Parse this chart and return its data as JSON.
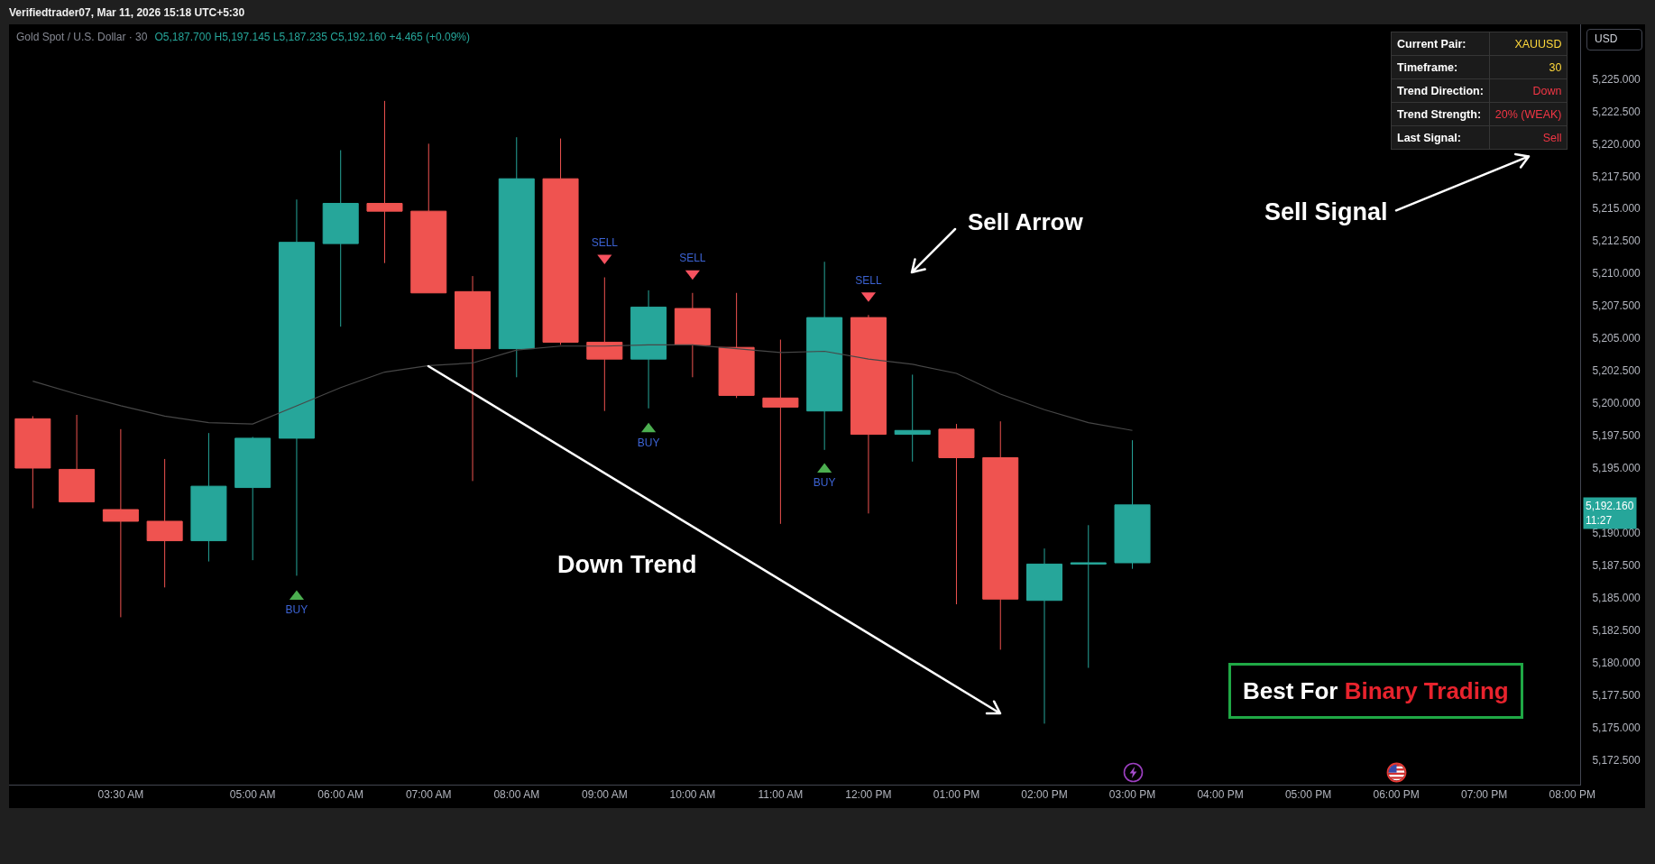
{
  "chart_data": [
    {
      "type": "candlestick",
      "title": "Gold Spot / U.S. Dollar · 30",
      "subtitle": "O5,187.700 H5,197.145 L5,187.235 C5,192.160 +4.465 (+0.09%)",
      "ylabel": "USD",
      "x": [
        2.5,
        3,
        3.5,
        4,
        4.5,
        5,
        5.5,
        6,
        6.5,
        7,
        7.5,
        8,
        8.5,
        9,
        9.5,
        10,
        10.5,
        11,
        11.5,
        12,
        12.5,
        13,
        13.5,
        14,
        14.5,
        15
      ],
      "ohlc": [
        [
          5198.8,
          5199.0,
          5191.9,
          5195.0
        ],
        [
          5194.9,
          5199.1,
          5192.4,
          5192.4
        ],
        [
          5191.8,
          5198.0,
          5183.5,
          5190.9
        ],
        [
          5190.9,
          5195.7,
          5185.8,
          5189.4
        ],
        [
          5189.4,
          5197.7,
          5187.8,
          5193.6
        ],
        [
          5193.5,
          5197.4,
          5187.9,
          5197.3
        ],
        [
          5197.3,
          5215.7,
          5186.7,
          5212.4
        ],
        [
          5212.3,
          5219.5,
          5205.9,
          5215.4
        ],
        [
          5215.4,
          5223.3,
          5210.8,
          5214.8
        ],
        [
          5214.8,
          5220.0,
          5208.5,
          5208.5
        ],
        [
          5208.6,
          5209.8,
          5194.0,
          5204.2
        ],
        [
          5204.2,
          5220.5,
          5202.0,
          5217.3
        ],
        [
          5217.3,
          5220.4,
          5204.5,
          5204.7
        ],
        [
          5204.7,
          5209.7,
          5199.4,
          5203.4
        ],
        [
          5203.4,
          5208.7,
          5199.6,
          5207.4
        ],
        [
          5207.3,
          5208.5,
          5202.0,
          5204.5
        ],
        [
          5204.3,
          5208.5,
          5200.4,
          5200.6
        ],
        [
          5200.4,
          5204.9,
          5190.7,
          5199.7
        ],
        [
          5199.4,
          5210.9,
          5196.4,
          5206.6
        ],
        [
          5206.6,
          5206.8,
          5191.5,
          5197.6
        ],
        [
          5197.6,
          5202.2,
          5195.5,
          5197.9
        ],
        [
          5198.0,
          5198.4,
          5184.5,
          5195.8
        ],
        [
          5195.8,
          5198.6,
          5181.0,
          5184.9
        ],
        [
          5184.8,
          5188.8,
          5175.3,
          5187.6
        ],
        [
          5187.6,
          5190.6,
          5179.6,
          5187.7
        ],
        [
          5187.7,
          5197.145,
          5187.235,
          5192.16
        ]
      ],
      "colors": [
        "#ef5350",
        "#ef5350",
        "#ef5350",
        "#ef5350",
        "#26a69a",
        "#26a69a",
        "#26a69a",
        "#26a69a",
        "#ef5350",
        "#ef5350",
        "#ef5350",
        "#26a69a",
        "#ef5350",
        "#ef5350",
        "#26a69a",
        "#ef5350",
        "#ef5350",
        "#ef5350",
        "#26a69a",
        "#ef5350",
        "#26a69a",
        "#ef5350",
        "#ef5350",
        "#26a69a",
        "#26a69a",
        "#26a69a"
      ],
      "series": [
        {
          "type": "line",
          "color": "#474747",
          "x": [
            2.5,
            3,
            3.5,
            4,
            4.5,
            5,
            5.5,
            6,
            6.5,
            7,
            7.5,
            8,
            8.5,
            9,
            9.5,
            10,
            10.5,
            11,
            11.5,
            12,
            12.5,
            13,
            13.5,
            14,
            14.5,
            15
          ],
          "values": [
            5201.7,
            5200.7,
            5199.8,
            5199.0,
            5198.5,
            5198.4,
            5199.8,
            5201.2,
            5202.4,
            5202.9,
            5203.1,
            5204.1,
            5204.4,
            5204.4,
            5204.5,
            5204.5,
            5204.2,
            5203.9,
            5204.0,
            5203.4,
            5203.0,
            5202.3,
            5200.7,
            5199.5,
            5198.5,
            5197.9
          ]
        },
        {
          "name": "BUY",
          "type": "scatter",
          "marker": "triangle",
          "color": "#4caf50",
          "x": [
            5.5,
            9.5,
            11.5
          ],
          "values": [
            5185.1,
            5198.0,
            5194.9
          ]
        },
        {
          "name": "SELL",
          "type": "scatter",
          "marker": "triangle-down",
          "color": "#f7525f",
          "x": [
            9,
            10,
            12
          ],
          "values": [
            5211.2,
            5210.0,
            5208.3
          ]
        }
      ],
      "xlim": [
        2.23,
        20.09
      ],
      "xticks": [
        {
          "value": 3.5,
          "label": "03:30 AM"
        },
        {
          "value": 5,
          "label": "05:00 AM"
        },
        {
          "value": 6,
          "label": "06:00 AM"
        },
        {
          "value": 7,
          "label": "07:00 AM"
        },
        {
          "value": 8,
          "label": "08:00 AM"
        },
        {
          "value": 9,
          "label": "09:00 AM"
        },
        {
          "value": 10,
          "label": "10:00 AM"
        },
        {
          "value": 11,
          "label": "11:00 AM"
        },
        {
          "value": 12,
          "label": "12:00 PM"
        },
        {
          "value": 13,
          "label": "01:00 PM"
        },
        {
          "value": 14,
          "label": "02:00 PM"
        },
        {
          "value": 15,
          "label": "03:00 PM"
        },
        {
          "value": 16,
          "label": "04:00 PM"
        },
        {
          "value": 17,
          "label": "05:00 PM"
        },
        {
          "value": 18,
          "label": "06:00 PM"
        },
        {
          "value": 19,
          "label": "07:00 PM"
        },
        {
          "value": 20,
          "label": "08:00 PM"
        }
      ],
      "ylim": [
        5170.6,
        5229.2
      ],
      "yticks": [
        {
          "value": 5172.5,
          "label": "5,172.500"
        },
        {
          "value": 5175,
          "label": "5,175.000"
        },
        {
          "value": 5177.5,
          "label": "5,177.500"
        },
        {
          "value": 5180,
          "label": "5,180.000"
        },
        {
          "value": 5182.5,
          "label": "5,182.500"
        },
        {
          "value": 5185,
          "label": "5,185.000"
        },
        {
          "value": 5187.5,
          "label": "5,187.500"
        },
        {
          "value": 5190,
          "label": "5,190.000"
        },
        {
          "value": 5195,
          "label": "5,195.000"
        },
        {
          "value": 5197.5,
          "label": "5,197.500"
        },
        {
          "value": 5200,
          "label": "5,200.000"
        },
        {
          "value": 5202.5,
          "label": "5,202.500"
        },
        {
          "value": 5205,
          "label": "5,205.000"
        },
        {
          "value": 5207.5,
          "label": "5,207.500"
        },
        {
          "value": 5210,
          "label": "5,210.000"
        },
        {
          "value": 5212.5,
          "label": "5,212.500"
        },
        {
          "value": 5215,
          "label": "5,215.000"
        },
        {
          "value": 5217.5,
          "label": "5,217.500"
        },
        {
          "value": 5220,
          "label": "5,220.000"
        },
        {
          "value": 5222.5,
          "label": "5,222.500"
        },
        {
          "value": 5225,
          "label": "5,225.000"
        }
      ],
      "annotations": [
        "Verifiedtrader07, Mar 11, 2026 15:18 UTC+5:30",
        "Sell Arrow",
        "Down Trend",
        "Sell Signal",
        "Best For",
        "Binary Trading",
        "5,192.160\n11:27"
      ]
    },
    {
      "type": "other",
      "annotations": [
        "Current Pair:",
        "XAUUSD",
        "Timeframe:",
        "30",
        "Trend Direction:",
        "Down",
        "Trend Strength:",
        "20% (WEAK)",
        "Last Signal:",
        "Sell"
      ],
      "colors": [
        "#ffffff",
        "#ffd83b",
        "#ffffff",
        "#ffd83b",
        "#ffffff",
        "#f23645",
        "#ffffff",
        "#f23645",
        "#ffffff",
        "#f23645"
      ]
    }
  ]
}
